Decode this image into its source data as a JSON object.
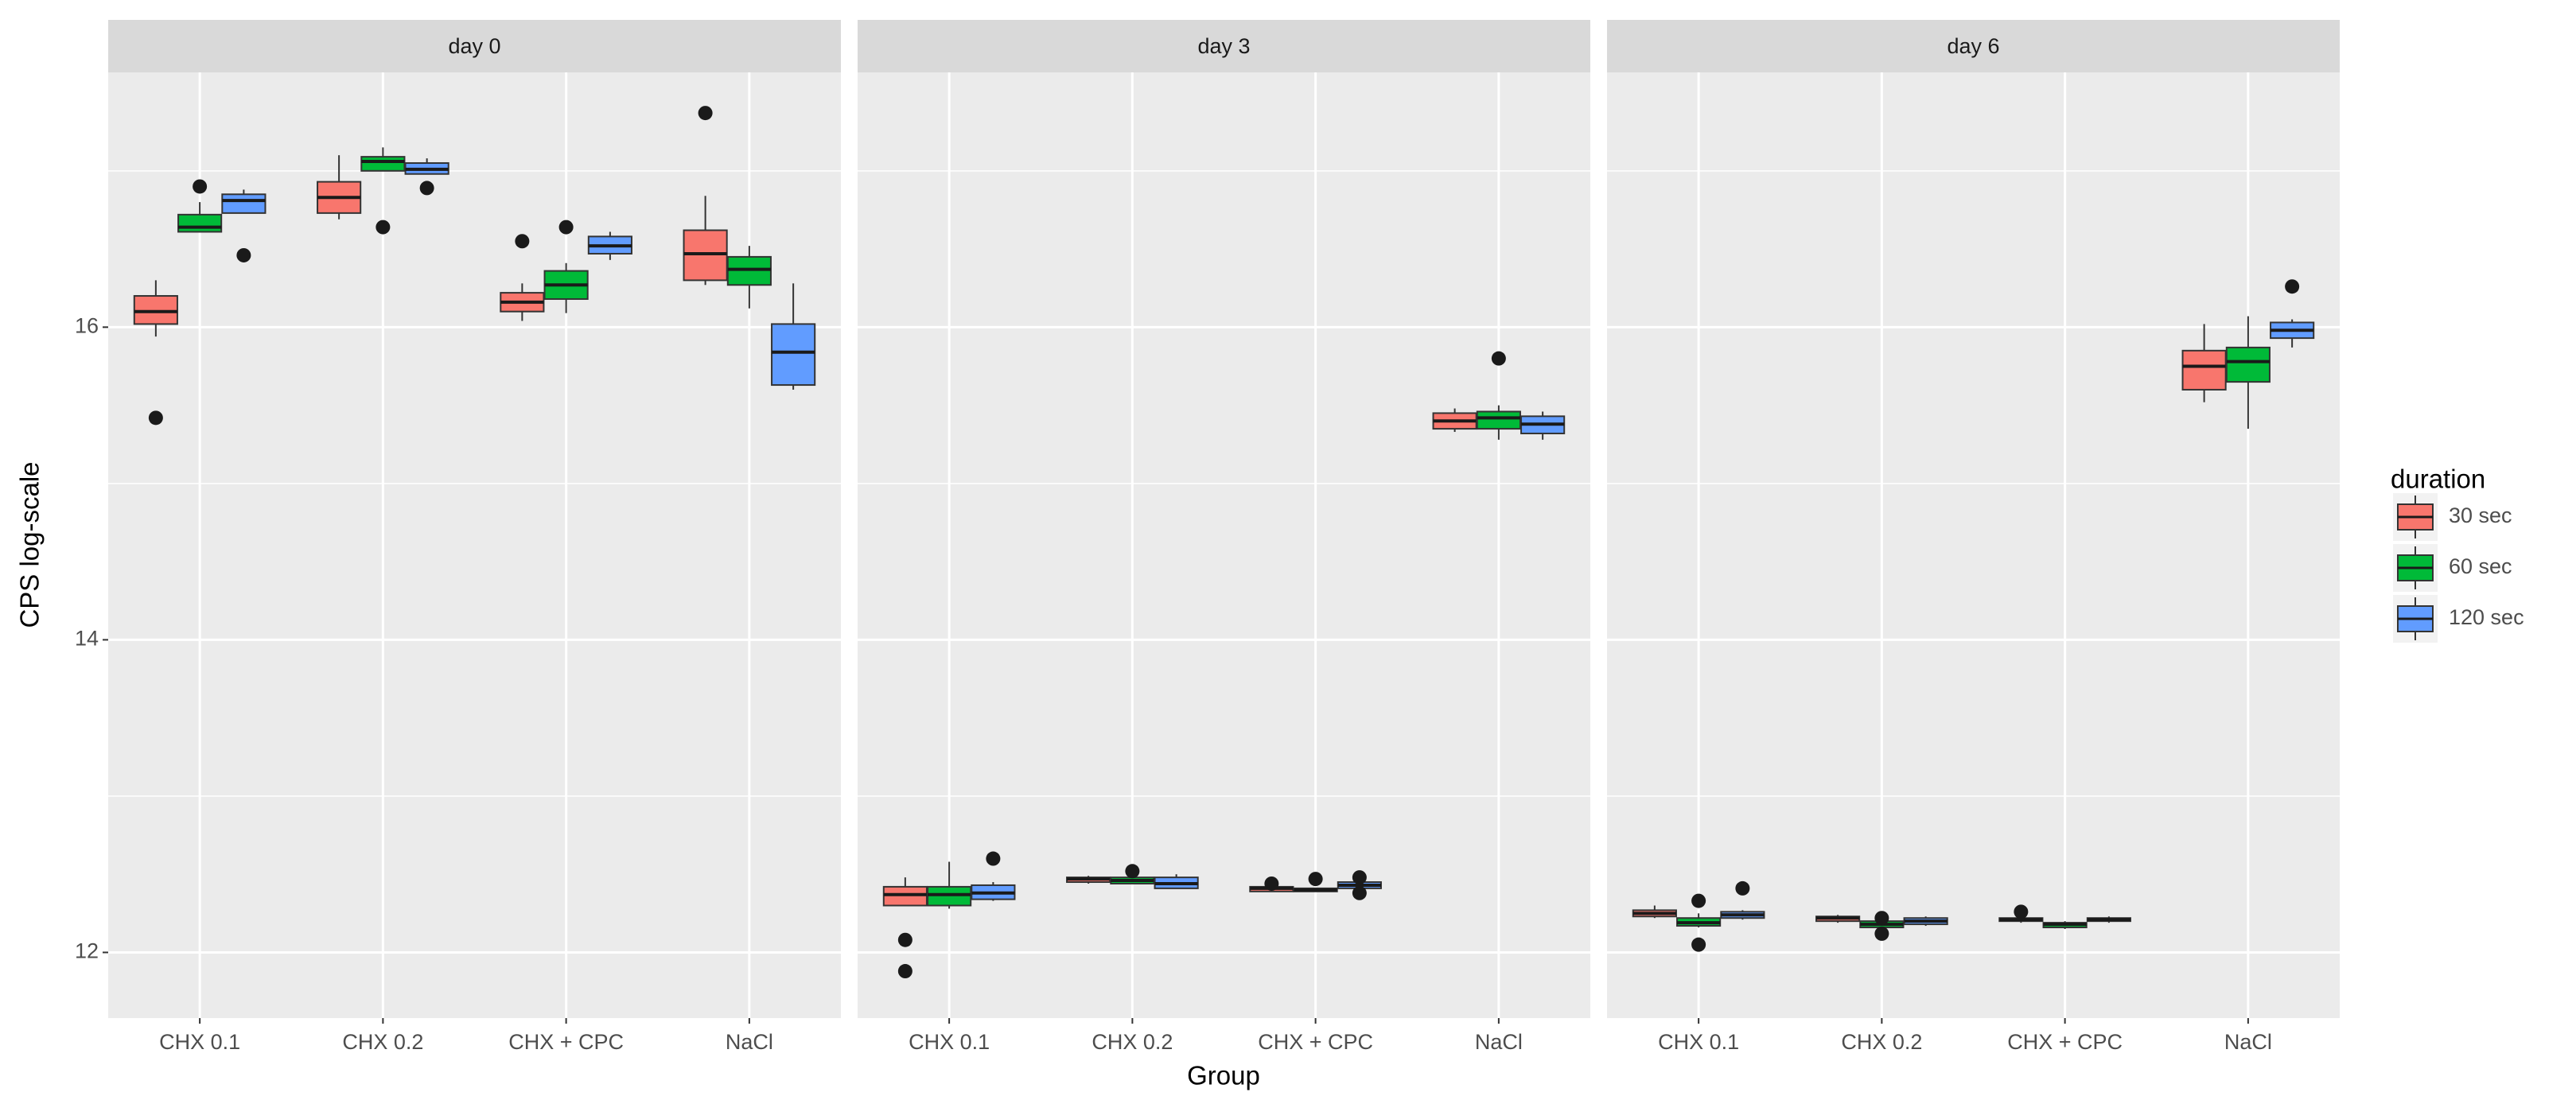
{
  "chart_data": {
    "type": "boxplot",
    "x_label": "Group",
    "y_label": "CPS log-scale",
    "categories": [
      "CHX 0.1",
      "CHX 0.2",
      "CHX + CPC",
      "NaCl"
    ],
    "ylim": [
      11.58,
      17.63
    ],
    "yticks": [
      12,
      14,
      16
    ],
    "minor_yticks": [
      13,
      15,
      17
    ],
    "grid": true,
    "legend_title": "duration",
    "legend_position": "right",
    "series": [
      {
        "name": "30 sec",
        "color": "#F8766D"
      },
      {
        "name": "60 sec",
        "color": "#00BA38"
      },
      {
        "name": "120 sec",
        "color": "#619CFF"
      }
    ],
    "panels": [
      {
        "title": "day 0",
        "boxes": [
          [
            {
              "min": 15.94,
              "q1": 16.02,
              "median": 16.1,
              "q3": 16.2,
              "max": 16.3,
              "outliers": [
                15.42
              ]
            },
            {
              "min": 16.61,
              "q1": 16.61,
              "median": 16.64,
              "q3": 16.72,
              "max": 16.8,
              "outliers": [
                16.9
              ]
            },
            {
              "min": 16.73,
              "q1": 16.73,
              "median": 16.81,
              "q3": 16.85,
              "max": 16.88,
              "outliers": [
                16.46
              ]
            }
          ],
          [
            {
              "min": 16.69,
              "q1": 16.73,
              "median": 16.83,
              "q3": 16.93,
              "max": 17.1
            },
            {
              "min": 17.0,
              "q1": 17.0,
              "median": 17.06,
              "q3": 17.09,
              "max": 17.15,
              "outliers": [
                16.64
              ]
            },
            {
              "min": 16.98,
              "q1": 16.98,
              "median": 17.01,
              "q3": 17.05,
              "max": 17.08,
              "outliers": [
                16.89
              ]
            }
          ],
          [
            {
              "min": 16.04,
              "q1": 16.1,
              "median": 16.16,
              "q3": 16.22,
              "max": 16.28,
              "outliers": [
                16.55
              ]
            },
            {
              "min": 16.09,
              "q1": 16.18,
              "median": 16.27,
              "q3": 16.36,
              "max": 16.41,
              "outliers": [
                16.64
              ]
            },
            {
              "min": 16.43,
              "q1": 16.47,
              "median": 16.52,
              "q3": 16.58,
              "max": 16.61
            }
          ],
          [
            {
              "min": 16.27,
              "q1": 16.3,
              "median": 16.47,
              "q3": 16.62,
              "max": 16.84,
              "outliers": [
                17.37
              ]
            },
            {
              "min": 16.12,
              "q1": 16.27,
              "median": 16.37,
              "q3": 16.45,
              "max": 16.52
            },
            {
              "min": 15.6,
              "q1": 15.63,
              "median": 15.84,
              "q3": 16.02,
              "max": 16.28
            }
          ]
        ]
      },
      {
        "title": "day 3",
        "boxes": [
          [
            {
              "min": 12.3,
              "q1": 12.3,
              "median": 12.37,
              "q3": 12.42,
              "max": 12.48,
              "outliers": [
                12.08,
                11.88
              ]
            },
            {
              "min": 12.28,
              "q1": 12.3,
              "median": 12.37,
              "q3": 12.42,
              "max": 12.58
            },
            {
              "min": 12.33,
              "q1": 12.34,
              "median": 12.38,
              "q3": 12.43,
              "max": 12.45,
              "outliers": [
                12.6
              ]
            }
          ],
          [
            {
              "min": 12.44,
              "q1": 12.45,
              "median": 12.47,
              "q3": 12.48,
              "max": 12.49
            },
            {
              "min": 12.44,
              "q1": 12.44,
              "median": 12.46,
              "q3": 12.48,
              "max": 12.49,
              "outliers": [
                12.52
              ]
            },
            {
              "min": 12.41,
              "q1": 12.41,
              "median": 12.44,
              "q3": 12.48,
              "max": 12.5
            }
          ],
          [
            {
              "min": 12.39,
              "q1": 12.39,
              "median": 12.41,
              "q3": 12.42,
              "max": 12.42,
              "outliers": [
                12.44
              ]
            },
            {
              "min": 12.39,
              "q1": 12.39,
              "median": 12.4,
              "q3": 12.41,
              "max": 12.41,
              "outliers": [
                12.47
              ]
            },
            {
              "min": 12.41,
              "q1": 12.41,
              "median": 12.43,
              "q3": 12.45,
              "max": 12.46,
              "outliers": [
                12.48,
                12.38
              ]
            }
          ],
          [
            {
              "min": 15.33,
              "q1": 15.35,
              "median": 15.4,
              "q3": 15.45,
              "max": 15.48
            },
            {
              "min": 15.28,
              "q1": 15.35,
              "median": 15.42,
              "q3": 15.46,
              "max": 15.5,
              "outliers": [
                15.8
              ]
            },
            {
              "min": 15.28,
              "q1": 15.32,
              "median": 15.38,
              "q3": 15.43,
              "max": 15.46
            }
          ]
        ]
      },
      {
        "title": "day 6",
        "boxes": [
          [
            {
              "min": 12.22,
              "q1": 12.23,
              "median": 12.25,
              "q3": 12.27,
              "max": 12.3
            },
            {
              "min": 12.16,
              "q1": 12.17,
              "median": 12.19,
              "q3": 12.22,
              "max": 12.25,
              "outliers": [
                12.33,
                12.05
              ]
            },
            {
              "min": 12.21,
              "q1": 12.22,
              "median": 12.24,
              "q3": 12.26,
              "max": 12.27,
              "outliers": [
                12.41
              ]
            }
          ],
          [
            {
              "min": 12.19,
              "q1": 12.2,
              "median": 12.22,
              "q3": 12.23,
              "max": 12.24
            },
            {
              "min": 12.15,
              "q1": 12.16,
              "median": 12.18,
              "q3": 12.2,
              "max": 12.2,
              "outliers": [
                12.12,
                12.22
              ]
            },
            {
              "min": 12.17,
              "q1": 12.18,
              "median": 12.2,
              "q3": 12.22,
              "max": 12.23
            }
          ],
          [
            {
              "min": 12.19,
              "q1": 12.2,
              "median": 12.21,
              "q3": 12.22,
              "max": 12.23,
              "outliers": [
                12.26
              ]
            },
            {
              "min": 12.15,
              "q1": 12.16,
              "median": 12.18,
              "q3": 12.19,
              "max": 12.2
            },
            {
              "min": 12.19,
              "q1": 12.2,
              "median": 12.21,
              "q3": 12.22,
              "max": 12.23
            }
          ],
          [
            {
              "min": 15.52,
              "q1": 15.6,
              "median": 15.75,
              "q3": 15.85,
              "max": 16.02
            },
            {
              "min": 15.35,
              "q1": 15.65,
              "median": 15.78,
              "q3": 15.87,
              "max": 16.07
            },
            {
              "min": 15.87,
              "q1": 15.93,
              "median": 15.98,
              "q3": 16.03,
              "max": 16.05,
              "outliers": [
                16.26
              ]
            }
          ]
        ]
      }
    ]
  }
}
